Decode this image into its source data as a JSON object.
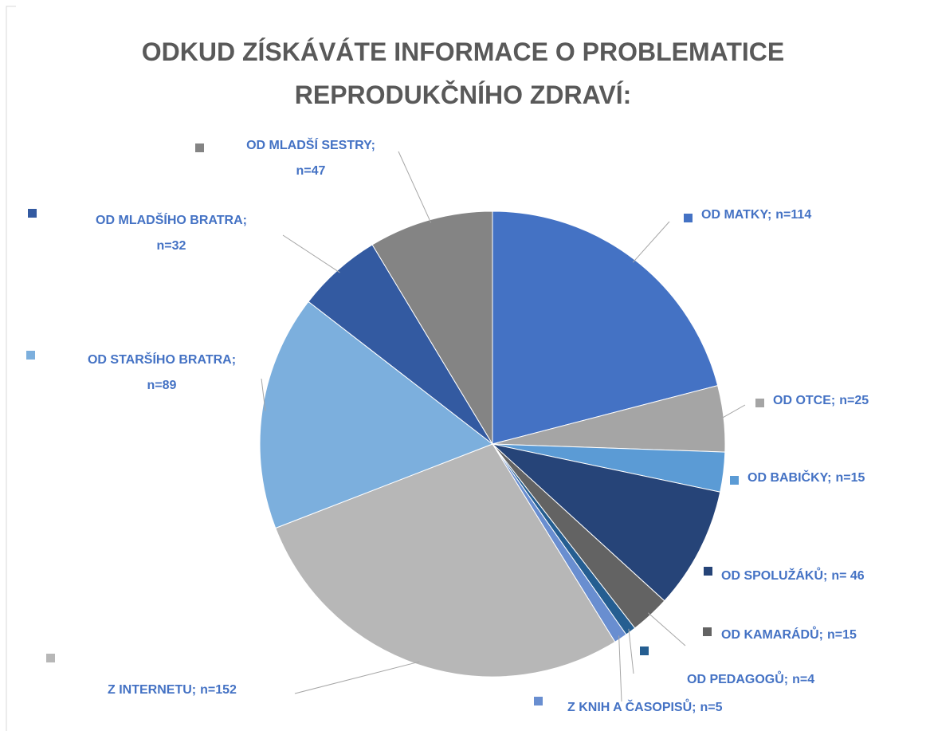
{
  "chart_data": {
    "type": "pie",
    "title": "ODKUD ZÍSKÁVÁTE INFORMACE O PROBLEMATICE REPRODUKČNÍHO ZDRAVÍ:",
    "categories": [
      "OD MATKY;",
      "OD OTCE;",
      "OD BABIČKY;",
      "OD SPOLUŽÁKŮ;",
      "OD KAMARÁDŮ;",
      "OD PEDAGOGŮ;",
      "Z KNIH A ČASOPISŮ;",
      "Z INTERNETU;",
      "OD STARŠÍHO BRATRA;",
      "OD MLADŠÍHO BRATRA;",
      "OD MLADŠÍ SESTRY;"
    ],
    "values": [
      114,
      25,
      15,
      46,
      15,
      4,
      5,
      152,
      89,
      32,
      47
    ],
    "value_labels": [
      "n=114",
      "n=25",
      "n=15",
      "n= 46",
      "n=15",
      "n=4",
      "n=5",
      "n=152",
      "n=89",
      "n=32",
      "n=47"
    ],
    "colors": [
      "#4472c4",
      "#a5a5a5",
      "#5b9bd5",
      "#264478",
      "#636363",
      "#255e91",
      "#698ed0",
      "#b7b7b7",
      "#7cafdd",
      "#335aa1",
      "#848484"
    ]
  }
}
